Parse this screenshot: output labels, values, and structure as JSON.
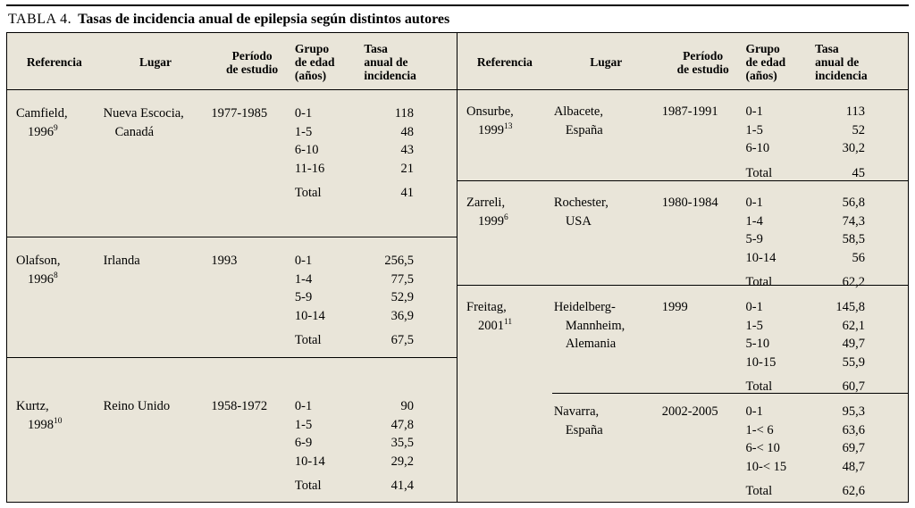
{
  "title": {
    "table_label": "TABLA 4.",
    "table_title": "Tasas de incidencia anual de epilepsia según distintos autores"
  },
  "columns": {
    "referencia": "Referencia",
    "lugar": "Lugar",
    "periodo": "Período\nde estudio",
    "grupo_edad": "Grupo\nde edad\n(años)",
    "tasa": "Tasa\nanual de\nincidencia"
  },
  "left_blocks": [
    {
      "ref_name": "Camfield,",
      "ref_year": "1996",
      "ref_sup": "9",
      "lugar_lines": [
        "Nueva Escocia,",
        "Canadá"
      ],
      "periodo": "1977-1985",
      "rows": [
        {
          "age": "0-1",
          "rate": "118"
        },
        {
          "age": "1-5",
          "rate": "48"
        },
        {
          "age": "6-10",
          "rate": "43"
        },
        {
          "age": "11-16",
          "rate": "21"
        }
      ],
      "total_label": "Total",
      "total_rate": "41"
    },
    {
      "ref_name": "Olafson,",
      "ref_year": "1996",
      "ref_sup": "8",
      "lugar_lines": [
        "Irlanda"
      ],
      "periodo": "1993",
      "rows": [
        {
          "age": "0-1",
          "rate": "256,5"
        },
        {
          "age": "1-4",
          "rate": "77,5"
        },
        {
          "age": "5-9",
          "rate": "52,9"
        },
        {
          "age": "10-14",
          "rate": "36,9"
        }
      ],
      "total_label": "Total",
      "total_rate": "67,5"
    },
    {
      "ref_name": "Kurtz,",
      "ref_year": "1998",
      "ref_sup": "10",
      "lugar_lines": [
        "Reino Unido"
      ],
      "periodo": "1958-1972",
      "rows": [
        {
          "age": "0-1",
          "rate": "90"
        },
        {
          "age": "1-5",
          "rate": "47,8"
        },
        {
          "age": "6-9",
          "rate": "35,5"
        },
        {
          "age": "10-14",
          "rate": "29,2"
        }
      ],
      "total_label": "Total",
      "total_rate": "41,4"
    }
  ],
  "right_blocks": [
    {
      "ref_name": "Onsurbe,",
      "ref_year": "1999",
      "ref_sup": "13",
      "lugar_lines": [
        "Albacete,",
        "España"
      ],
      "periodo": "1987-1991",
      "rows": [
        {
          "age": "0-1",
          "rate": "113"
        },
        {
          "age": "1-5",
          "rate": "52"
        },
        {
          "age": "6-10",
          "rate": "30,2"
        }
      ],
      "total_label": "Total",
      "total_rate": "45"
    },
    {
      "ref_name": "Zarreli,",
      "ref_year": "1999",
      "ref_sup": "6",
      "lugar_lines": [
        "Rochester,",
        "USA"
      ],
      "periodo": "1980-1984",
      "rows": [
        {
          "age": "0-1",
          "rate": "56,8"
        },
        {
          "age": "1-4",
          "rate": "74,3"
        },
        {
          "age": "5-9",
          "rate": "58,5"
        },
        {
          "age": "10-14",
          "rate": "56"
        }
      ],
      "total_label": "Total",
      "total_rate": "62,2"
    },
    {
      "ref_name": "Freitag,",
      "ref_year": "2001",
      "ref_sup": "11",
      "lugar_lines": [
        "Heidelberg-",
        "Mannheim,",
        "Alemania"
      ],
      "periodo": "1999",
      "rows": [
        {
          "age": "0-1",
          "rate": "145,8"
        },
        {
          "age": "1-5",
          "rate": "62,1"
        },
        {
          "age": "5-10",
          "rate": "49,7"
        },
        {
          "age": "10-15",
          "rate": "55,9"
        }
      ],
      "total_label": "Total",
      "total_rate": "60,7"
    },
    {
      "ref_name": "",
      "ref_year": "",
      "ref_sup": "",
      "lugar_lines": [
        "Navarra,",
        "España"
      ],
      "periodo": "2002-2005",
      "rows": [
        {
          "age": "0-1",
          "rate": "95,3"
        },
        {
          "age": "1-< 6",
          "rate": "63,6"
        },
        {
          "age": "6-< 10",
          "rate": "69,7"
        },
        {
          "age": "10-< 15",
          "rate": "48,7"
        }
      ],
      "total_label": "Total",
      "total_rate": "62,6"
    }
  ]
}
